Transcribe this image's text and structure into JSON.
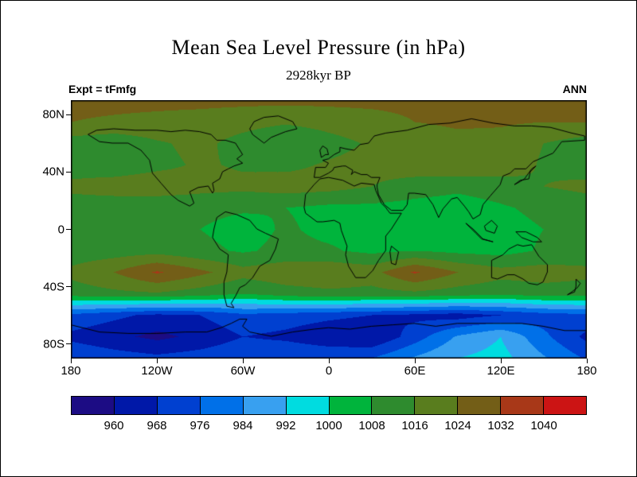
{
  "figure": {
    "background": "#ffffff",
    "frame_color": "#000000"
  },
  "chart_data": {
    "type": "heatmap",
    "title": "Mean Sea Level Pressure (in hPa)",
    "subtitle": "2928kyr BP",
    "annotations": {
      "top_left": "Expt = tFmfg",
      "top_right": "ANN"
    },
    "units": "hPa",
    "projection": "equirectangular",
    "xlim": [
      -180,
      180
    ],
    "ylim": [
      -90,
      90
    ],
    "grid_on": false,
    "legend_position": "bottom-colorbar",
    "x_ticks": [
      {
        "lon": -180,
        "label": "180"
      },
      {
        "lon": -120,
        "label": "120W"
      },
      {
        "lon": -60,
        "label": "60W"
      },
      {
        "lon": 0,
        "label": "0"
      },
      {
        "lon": 60,
        "label": "60E"
      },
      {
        "lon": 120,
        "label": "120E"
      },
      {
        "lon": 180,
        "label": "180"
      }
    ],
    "y_ticks": [
      {
        "lat": 80,
        "label": "80N"
      },
      {
        "lat": 40,
        "label": "40N"
      },
      {
        "lat": 0,
        "label": "0"
      },
      {
        "lat": -40,
        "label": "40S"
      },
      {
        "lat": -80,
        "label": "80S"
      }
    ],
    "contour_levels_hpa": [
      960,
      968,
      976,
      984,
      992,
      1000,
      1008,
      1016,
      1024,
      1032,
      1040
    ],
    "colorbar_labels": [
      "960",
      "968",
      "976",
      "984",
      "992",
      "1000",
      "1008",
      "1016",
      "1024",
      "1032",
      "1040"
    ],
    "palette": [
      "#1c0c84",
      "#0018a8",
      "#0040d0",
      "#0070e8",
      "#38a0f0",
      "#00dce0",
      "#00b43c",
      "#2e8b2e",
      "#597d1e",
      "#735e17",
      "#a83818",
      "#cc1414"
    ],
    "grid": {
      "lons": [
        -180,
        -150,
        -120,
        -90,
        -60,
        -30,
        0,
        30,
        60,
        90,
        120,
        150,
        180
      ],
      "lats": [
        90,
        75,
        60,
        45,
        30,
        15,
        0,
        -15,
        -30,
        -45,
        -60,
        -75,
        -90
      ],
      "values_hpa": [
        [
          1026,
          1026,
          1026,
          1026,
          1026,
          1026,
          1026,
          1026,
          1026,
          1026,
          1026,
          1026,
          1026
        ],
        [
          1024,
          1023,
          1022,
          1021,
          1019,
          1017,
          1019,
          1021,
          1024,
          1025,
          1025,
          1024,
          1024
        ],
        [
          1012,
          1010,
          1015,
          1018,
          1013,
          1008,
          1013,
          1017,
          1020,
          1022,
          1021,
          1016,
          1012
        ],
        [
          1012,
          1011,
          1014,
          1017,
          1015,
          1014,
          1017,
          1019,
          1021,
          1023,
          1021,
          1015,
          1012
        ],
        [
          1018,
          1020,
          1021,
          1019,
          1018,
          1020,
          1019,
          1016,
          1012,
          1010,
          1012,
          1016,
          1018
        ],
        [
          1012,
          1011,
          1010,
          1010,
          1009,
          1008,
          1006,
          1006,
          1005,
          1004,
          1007,
          1010,
          1012
        ],
        [
          1009,
          1009,
          1010,
          1008,
          1005,
          1009,
          1006,
          1005,
          1007,
          1006,
          1005,
          1008,
          1009
        ],
        [
          1011,
          1012,
          1013,
          1010,
          1007,
          1010,
          1009,
          1006,
          1008,
          1006,
          1005,
          1009,
          1011
        ],
        [
          1018,
          1024,
          1033,
          1026,
          1019,
          1022,
          1023,
          1021,
          1033,
          1024,
          1019,
          1020,
          1018
        ],
        [
          1012,
          1014,
          1015,
          1012,
          1008,
          1012,
          1014,
          1013,
          1014,
          1012,
          1010,
          1012,
          1012
        ],
        [
          974,
          970,
          966,
          968,
          974,
          972,
          970,
          968,
          966,
          964,
          968,
          972,
          974
        ],
        [
          966,
          962,
          958,
          962,
          968,
          966,
          962,
          960,
          972,
          985,
          992,
          978,
          966
        ],
        [
          975,
          972,
          970,
          972,
          975,
          976,
          975,
          976,
          985,
          992,
          995,
          985,
          975
        ]
      ]
    },
    "coastlines": [
      [
        [
          -168,
          66
        ],
        [
          -160,
          61
        ],
        [
          -151,
          60
        ],
        [
          -140,
          60
        ],
        [
          -131,
          55
        ],
        [
          -125,
          48
        ],
        [
          -123,
          39
        ],
        [
          -117,
          32
        ],
        [
          -110,
          24
        ],
        [
          -105,
          20
        ],
        [
          -97,
          16
        ],
        [
          -94,
          18
        ],
        [
          -97,
          26
        ],
        [
          -91,
          29
        ],
        [
          -84,
          30
        ],
        [
          -81,
          25
        ],
        [
          -80,
          27
        ],
        [
          -81,
          32
        ],
        [
          -76,
          35
        ],
        [
          -74,
          40
        ],
        [
          -70,
          42
        ],
        [
          -66,
          44
        ],
        [
          -60,
          46
        ],
        [
          -64,
          49
        ],
        [
          -60,
          52
        ],
        [
          -65,
          60
        ],
        [
          -72,
          62
        ],
        [
          -78,
          62
        ],
        [
          -82,
          66
        ],
        [
          -90,
          68
        ],
        [
          -100,
          69
        ],
        [
          -110,
          68
        ],
        [
          -120,
          69
        ],
        [
          -135,
          69
        ],
        [
          -150,
          70
        ],
        [
          -162,
          69
        ],
        [
          -168,
          66
        ]
      ],
      [
        [
          -45,
          60
        ],
        [
          -53,
          66
        ],
        [
          -55,
          70
        ],
        [
          -52,
          75
        ],
        [
          -45,
          78
        ],
        [
          -35,
          79
        ],
        [
          -25,
          75
        ],
        [
          -22,
          70
        ],
        [
          -30,
          68
        ],
        [
          -40,
          64
        ],
        [
          -45,
          60
        ]
      ],
      [
        [
          -78,
          8
        ],
        [
          -72,
          12
        ],
        [
          -64,
          10
        ],
        [
          -55,
          6
        ],
        [
          -50,
          0
        ],
        [
          -44,
          -3
        ],
        [
          -35,
          -7
        ],
        [
          -37,
          -14
        ],
        [
          -41,
          -22
        ],
        [
          -48,
          -26
        ],
        [
          -53,
          -34
        ],
        [
          -58,
          -39
        ],
        [
          -62,
          -41
        ],
        [
          -65,
          -47
        ],
        [
          -68,
          -52
        ],
        [
          -66,
          -55
        ],
        [
          -71,
          -54
        ],
        [
          -73,
          -46
        ],
        [
          -73,
          -37
        ],
        [
          -71,
          -30
        ],
        [
          -70,
          -18
        ],
        [
          -76,
          -14
        ],
        [
          -81,
          -6
        ],
        [
          -80,
          0
        ],
        [
          -78,
          8
        ]
      ],
      [
        [
          -6,
          35
        ],
        [
          -10,
          31
        ],
        [
          -16,
          24
        ],
        [
          -17,
          15
        ],
        [
          -16,
          11
        ],
        [
          -8,
          5
        ],
        [
          -4,
          5
        ],
        [
          4,
          6
        ],
        [
          8,
          4
        ],
        [
          9,
          -1
        ],
        [
          13,
          -12
        ],
        [
          12,
          -18
        ],
        [
          14,
          -26
        ],
        [
          19,
          -34
        ],
        [
          26,
          -34
        ],
        [
          31,
          -29
        ],
        [
          35,
          -22
        ],
        [
          40,
          -15
        ],
        [
          40,
          -5
        ],
        [
          44,
          0
        ],
        [
          51,
          11
        ],
        [
          43,
          11
        ],
        [
          40,
          15
        ],
        [
          37,
          18
        ],
        [
          33,
          27
        ],
        [
          32,
          31
        ],
        [
          23,
          32
        ],
        [
          18,
          30
        ],
        [
          10,
          34
        ],
        [
          0,
          36
        ],
        [
          -6,
          35
        ]
      ],
      [
        [
          -10,
          36
        ],
        [
          -9,
          43
        ],
        [
          -2,
          43
        ],
        [
          0,
          46
        ],
        [
          -4,
          48
        ],
        [
          0,
          49
        ],
        [
          4,
          52
        ],
        [
          8,
          54
        ],
        [
          8,
          57
        ],
        [
          12,
          56
        ],
        [
          18,
          55
        ],
        [
          22,
          59
        ],
        [
          28,
          60
        ],
        [
          32,
          65
        ],
        [
          40,
          67
        ],
        [
          55,
          69
        ],
        [
          70,
          73
        ],
        [
          85,
          74
        ],
        [
          100,
          77
        ],
        [
          115,
          74
        ],
        [
          130,
          72
        ],
        [
          142,
          72
        ],
        [
          155,
          71
        ],
        [
          170,
          67
        ],
        [
          179,
          65
        ],
        [
          179,
          62
        ],
        [
          163,
          61
        ],
        [
          157,
          53
        ],
        [
          143,
          47
        ],
        [
          138,
          42
        ],
        [
          130,
          42
        ],
        [
          127,
          39
        ],
        [
          122,
          37
        ],
        [
          120,
          31
        ],
        [
          113,
          23
        ],
        [
          108,
          17
        ],
        [
          106,
          10
        ],
        [
          101,
          7
        ],
        [
          98,
          12
        ],
        [
          95,
          16
        ],
        [
          90,
          22
        ],
        [
          86,
          21
        ],
        [
          80,
          14
        ],
        [
          77,
          8
        ],
        [
          73,
          17
        ],
        [
          68,
          24
        ],
        [
          60,
          25
        ],
        [
          56,
          25
        ],
        [
          55,
          17
        ],
        [
          52,
          13
        ],
        [
          44,
          13
        ],
        [
          39,
          17
        ],
        [
          35,
          24
        ],
        [
          34,
          29
        ],
        [
          34,
          31
        ],
        [
          36,
          36
        ],
        [
          30,
          36
        ],
        [
          27,
          38
        ],
        [
          23,
          38
        ],
        [
          18,
          40
        ],
        [
          16,
          38
        ],
        [
          17,
          41
        ],
        [
          12,
          44
        ],
        [
          10,
          44
        ],
        [
          4,
          43
        ],
        [
          3,
          41
        ],
        [
          0,
          39
        ],
        [
          -6,
          36
        ],
        [
          -10,
          36
        ]
      ],
      [
        [
          114,
          -22
        ],
        [
          114,
          -34
        ],
        [
          118,
          -35
        ],
        [
          125,
          -32
        ],
        [
          130,
          -32
        ],
        [
          136,
          -35
        ],
        [
          140,
          -38
        ],
        [
          146,
          -39
        ],
        [
          150,
          -37
        ],
        [
          153,
          -30
        ],
        [
          153,
          -25
        ],
        [
          147,
          -19
        ],
        [
          142,
          -11
        ],
        [
          136,
          -12
        ],
        [
          132,
          -11
        ],
        [
          126,
          -14
        ],
        [
          122,
          -18
        ],
        [
          114,
          -22
        ]
      ],
      [
        [
          -180,
          -67
        ],
        [
          -160,
          -72
        ],
        [
          -140,
          -73
        ],
        [
          -120,
          -73
        ],
        [
          -100,
          -72
        ],
        [
          -85,
          -72
        ],
        [
          -75,
          -69
        ],
        [
          -68,
          -66
        ],
        [
          -62,
          -63
        ],
        [
          -57,
          -63
        ],
        [
          -60,
          -68
        ],
        [
          -55,
          -72
        ],
        [
          -40,
          -75
        ],
        [
          -25,
          -72
        ],
        [
          -10,
          -70
        ],
        [
          0,
          -69
        ],
        [
          15,
          -70
        ],
        [
          30,
          -68
        ],
        [
          45,
          -67
        ],
        [
          60,
          -66
        ],
        [
          75,
          -68
        ],
        [
          90,
          -66
        ],
        [
          105,
          -66
        ],
        [
          120,
          -66
        ],
        [
          135,
          -66
        ],
        [
          150,
          -68
        ],
        [
          165,
          -71
        ],
        [
          180,
          -71
        ]
      ],
      [
        [
          131,
          -2
        ],
        [
          138,
          -2
        ],
        [
          146,
          -6
        ],
        [
          149,
          -9
        ],
        [
          143,
          -9
        ],
        [
          135,
          -6
        ],
        [
          131,
          -2
        ]
      ],
      [
        [
          109,
          2
        ],
        [
          114,
          6
        ],
        [
          118,
          2
        ],
        [
          116,
          -3
        ],
        [
          110,
          -1
        ],
        [
          109,
          2
        ]
      ],
      [
        [
          96,
          4
        ],
        [
          103,
          -3
        ],
        [
          107,
          -7
        ],
        [
          115,
          -9
        ],
        [
          108,
          -7
        ],
        [
          101,
          0
        ],
        [
          96,
          4
        ]
      ],
      [
        [
          44,
          -12
        ],
        [
          49,
          -16
        ],
        [
          47,
          -25
        ],
        [
          44,
          -24
        ],
        [
          43,
          -16
        ],
        [
          44,
          -12
        ]
      ],
      [
        [
          130,
          31
        ],
        [
          134,
          34
        ],
        [
          140,
          35
        ],
        [
          141,
          40
        ],
        [
          145,
          44
        ],
        [
          142,
          42
        ],
        [
          137,
          35
        ],
        [
          132,
          32
        ],
        [
          130,
          31
        ]
      ],
      [
        [
          -5,
          50
        ],
        [
          -2,
          52
        ],
        [
          0,
          52
        ],
        [
          -1,
          56
        ],
        [
          -4,
          58
        ],
        [
          -6,
          55
        ],
        [
          -5,
          50
        ]
      ],
      [
        [
          173,
          -35
        ],
        [
          176,
          -38
        ],
        [
          174,
          -41
        ],
        [
          170,
          -44
        ],
        [
          167,
          -46
        ],
        [
          172,
          -44
        ],
        [
          173,
          -40
        ],
        [
          173,
          -35
        ]
      ]
    ]
  }
}
